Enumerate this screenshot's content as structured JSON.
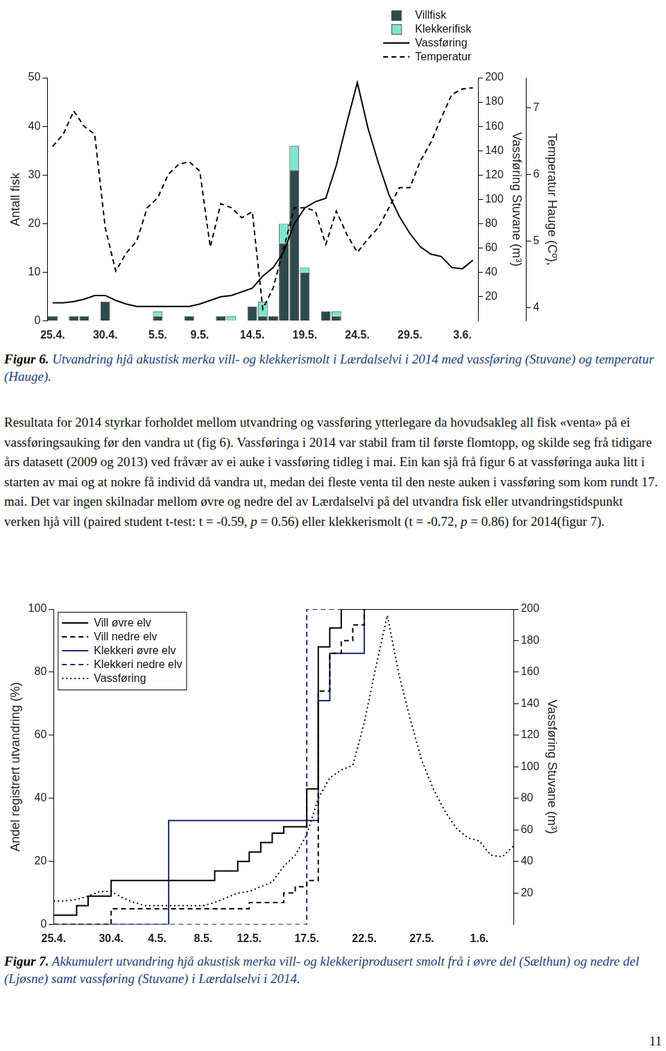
{
  "chart_data": [
    {
      "type": "bar",
      "stacked": true,
      "grid": false,
      "legend": "upper right",
      "categories": [
        "25.4.",
        null,
        null,
        null,
        null,
        "30.4.",
        null,
        null,
        null,
        null,
        "5.5.",
        null,
        null,
        null,
        "9.5.",
        null,
        null,
        null,
        null,
        "14.5.",
        null,
        null,
        null,
        null,
        "19.5.",
        null,
        null,
        null,
        null,
        "24.5.",
        null,
        null,
        null,
        null,
        "29.5.",
        null,
        null,
        null,
        null,
        "3.6.",
        null
      ],
      "series": [
        {
          "name": "Villfisk",
          "type": "bar",
          "color": "#2f4a4a",
          "values": [
            1,
            0,
            1,
            1,
            0,
            4,
            0,
            0,
            0,
            0,
            1,
            0,
            0,
            1,
            0,
            0,
            1,
            0,
            0,
            3,
            1,
            1,
            16,
            31,
            10,
            0,
            2,
            1,
            0,
            0,
            0,
            0,
            0,
            0,
            0,
            0,
            0,
            0,
            0,
            0,
            0
          ]
        },
        {
          "name": "Klekkerifisk",
          "type": "bar",
          "color": "#7fe6cc",
          "values": [
            0,
            0,
            0,
            0,
            0,
            0,
            0,
            0,
            0,
            0,
            1,
            0,
            0,
            0,
            0,
            0,
            0,
            1,
            0,
            0,
            3,
            0,
            4,
            5,
            1,
            0,
            0,
            1,
            0,
            0,
            0,
            0,
            0,
            0,
            0,
            0,
            0,
            0,
            0,
            0,
            0
          ]
        },
        {
          "name": "Vassføring",
          "type": "line",
          "axis": "y2",
          "color": "#000000",
          "line_style": "solid",
          "values": [
            15,
            15,
            16,
            18,
            21,
            21,
            17,
            14,
            12,
            12,
            12,
            12,
            12,
            12,
            14,
            17,
            20,
            21,
            24,
            27,
            37,
            44,
            57,
            80,
            93,
            98,
            101,
            128,
            163,
            196,
            159,
            130,
            104,
            86,
            72,
            61,
            55,
            53,
            44,
            43,
            50
          ]
        },
        {
          "name": "Temperatur",
          "type": "line",
          "axis": "y3",
          "color": "#000000",
          "line_style": "dashed",
          "values": [
            6.42,
            6.6,
            6.95,
            6.72,
            6.6,
            5.2,
            4.55,
            4.82,
            5,
            5.5,
            5.65,
            6,
            6.15,
            6.19,
            6.05,
            4.91,
            5.56,
            5.5,
            5.35,
            5.44,
            3.98,
            4.3,
            4.9,
            5.5,
            5.5,
            5.45,
            4.95,
            5.45,
            5.1,
            4.83,
            5.03,
            5.2,
            5.5,
            5.8,
            5.8,
            6.2,
            6.48,
            6.85,
            7.2,
            7.28,
            7.3
          ]
        }
      ],
      "ylabel": "Antall fisk",
      "ylim": [
        0,
        50
      ],
      "yticks": [
        0,
        10,
        20,
        30,
        40,
        50
      ],
      "y2label": "Vassføring Stuvane (m³)",
      "y2lim": [
        0,
        200
      ],
      "y2ticks": [
        20,
        40,
        60,
        80,
        100,
        120,
        140,
        160,
        180,
        200
      ],
      "y3label": "Temperatur Hauge (Cº),",
      "y3lim": [
        3.8,
        7.45
      ],
      "y3ticks": [
        4,
        5,
        6,
        7
      ]
    },
    {
      "type": "step",
      "grid": false,
      "legend": "upper left",
      "categories": [
        "25.4.",
        null,
        null,
        null,
        null,
        "30.4.",
        null,
        null,
        null,
        "4.5.",
        null,
        null,
        null,
        "8.5.",
        null,
        null,
        null,
        "12.5.",
        null,
        null,
        null,
        null,
        "17.5.",
        null,
        null,
        null,
        null,
        "22.5.",
        null,
        null,
        null,
        null,
        "27.5.",
        null,
        null,
        null,
        null,
        "1.6.",
        null,
        null,
        null
      ],
      "series": [
        {
          "name": "Vill øvre elv",
          "color": "#000000",
          "line_style": "solid",
          "values": [
            3,
            3,
            6,
            9,
            9,
            14,
            14,
            14,
            14,
            14,
            14,
            14,
            14,
            14,
            17,
            17,
            20,
            23,
            26,
            29,
            31,
            31,
            43,
            88,
            94,
            100,
            100,
            100,
            100,
            100,
            100,
            100,
            100,
            100,
            100,
            100,
            100,
            100,
            100,
            100,
            100
          ]
        },
        {
          "name": "Vill nedre elv",
          "color": "#000000",
          "line_style": "dashed",
          "values": [
            0,
            0,
            0,
            0,
            0,
            5,
            5,
            5,
            5,
            5,
            5,
            5,
            5,
            5,
            5,
            5,
            5,
            7,
            7,
            7,
            10,
            12,
            14,
            74,
            86,
            90,
            95,
            100,
            100,
            100,
            100,
            100,
            100,
            100,
            100,
            100,
            100,
            100,
            100,
            100,
            100
          ]
        },
        {
          "name": "Klekkeri øvre elv",
          "color": "#1b2a6e",
          "line_style": "solid",
          "values": [
            0,
            0,
            0,
            0,
            0,
            0,
            0,
            0,
            0,
            0,
            33,
            33,
            33,
            33,
            33,
            33,
            33,
            33,
            33,
            33,
            33,
            33,
            33,
            71,
            86,
            86,
            86,
            100,
            100,
            100,
            100,
            100,
            100,
            100,
            100,
            100,
            100,
            100,
            100,
            100,
            100
          ]
        },
        {
          "name": "Klekkeri nedre elv",
          "color": "#1b2a6e",
          "line_style": "dashed",
          "values": [
            0,
            0,
            0,
            0,
            0,
            0,
            0,
            0,
            0,
            0,
            0,
            0,
            0,
            0,
            0,
            0,
            0,
            0,
            0,
            0,
            0,
            0,
            100,
            100,
            100,
            100,
            100,
            100,
            100,
            100,
            100,
            100,
            100,
            100,
            100,
            100,
            100,
            100,
            100,
            100,
            100
          ]
        },
        {
          "name": "Vassføring",
          "type": "line",
          "axis": "y2",
          "color": "#000000",
          "line_style": "dotted",
          "values": [
            15,
            15,
            16,
            18,
            21,
            21,
            17,
            14,
            12,
            12,
            12,
            12,
            12,
            12,
            14,
            17,
            20,
            21,
            24,
            27,
            37,
            44,
            57,
            80,
            93,
            98,
            101,
            128,
            163,
            196,
            159,
            130,
            104,
            86,
            72,
            61,
            55,
            53,
            44,
            43,
            50
          ]
        }
      ],
      "ylabel": "Andel registrert utvandring (%)",
      "ylim": [
        0,
        100
      ],
      "yticks": [
        0,
        20,
        40,
        60,
        80,
        100
      ],
      "y2label": "Vassføring Stuvane (m³)",
      "y2lim": [
        0,
        200
      ],
      "y2ticks": [
        20,
        40,
        60,
        80,
        100,
        120,
        140,
        160,
        180,
        200
      ]
    }
  ],
  "document": {
    "figure_6_caption": {
      "label": "Figur 6.",
      "text": "Utvandring hjå akustisk merka vill- og klekkerismolt i Lærdalselvi i 2014 med vassføring (Stuvane) og temperatur (Hauge)."
    },
    "paragraph": [
      {
        "text": "Resultata for 2014 styrkar forholdet mellom utvandring og vassføring ytterlegare da hovudsakleg all fisk «venta» på ei vassføringsauking før den vandra ut (fig 6). Vassføringa i 2014 var stabil fram til første flomtopp, og skilde seg frå tidigare års datasett (2009 og 2013) ved fråvær av ei auke i vassføring tidleg i mai. Ein kan sjå frå figur 6 at vassføringa auka litt i starten av mai og at nokre få individ då vandra ut, medan dei fleste venta til den neste auken i vassføring som kom rundt 17. mai. Det var ingen skilnadar mellom øvre og nedre del av Lærdalselvi på del utvandra fisk eller utvandringstidspunkt verken hjå vill (paired student t-test: t = -0.59, "
      },
      {
        "text": "p",
        "italic": true
      },
      {
        "text": " = 0.56) eller klekkerismolt (t = -0.72, "
      },
      {
        "text": "p",
        "italic": true
      },
      {
        "text": " = 0.86) for 2014(figur 7)."
      }
    ],
    "figure_7_caption": {
      "label": "Figur 7.",
      "text": "Akkumulert utvandring hjå akustisk merka vill- og klekkeriprodusert smolt frå i øvre del (Sælthun) og nedre del (Ljøsne) samt vassføring (Stuvane) i Lærdalselvi i 2014."
    },
    "page_number": "11"
  }
}
